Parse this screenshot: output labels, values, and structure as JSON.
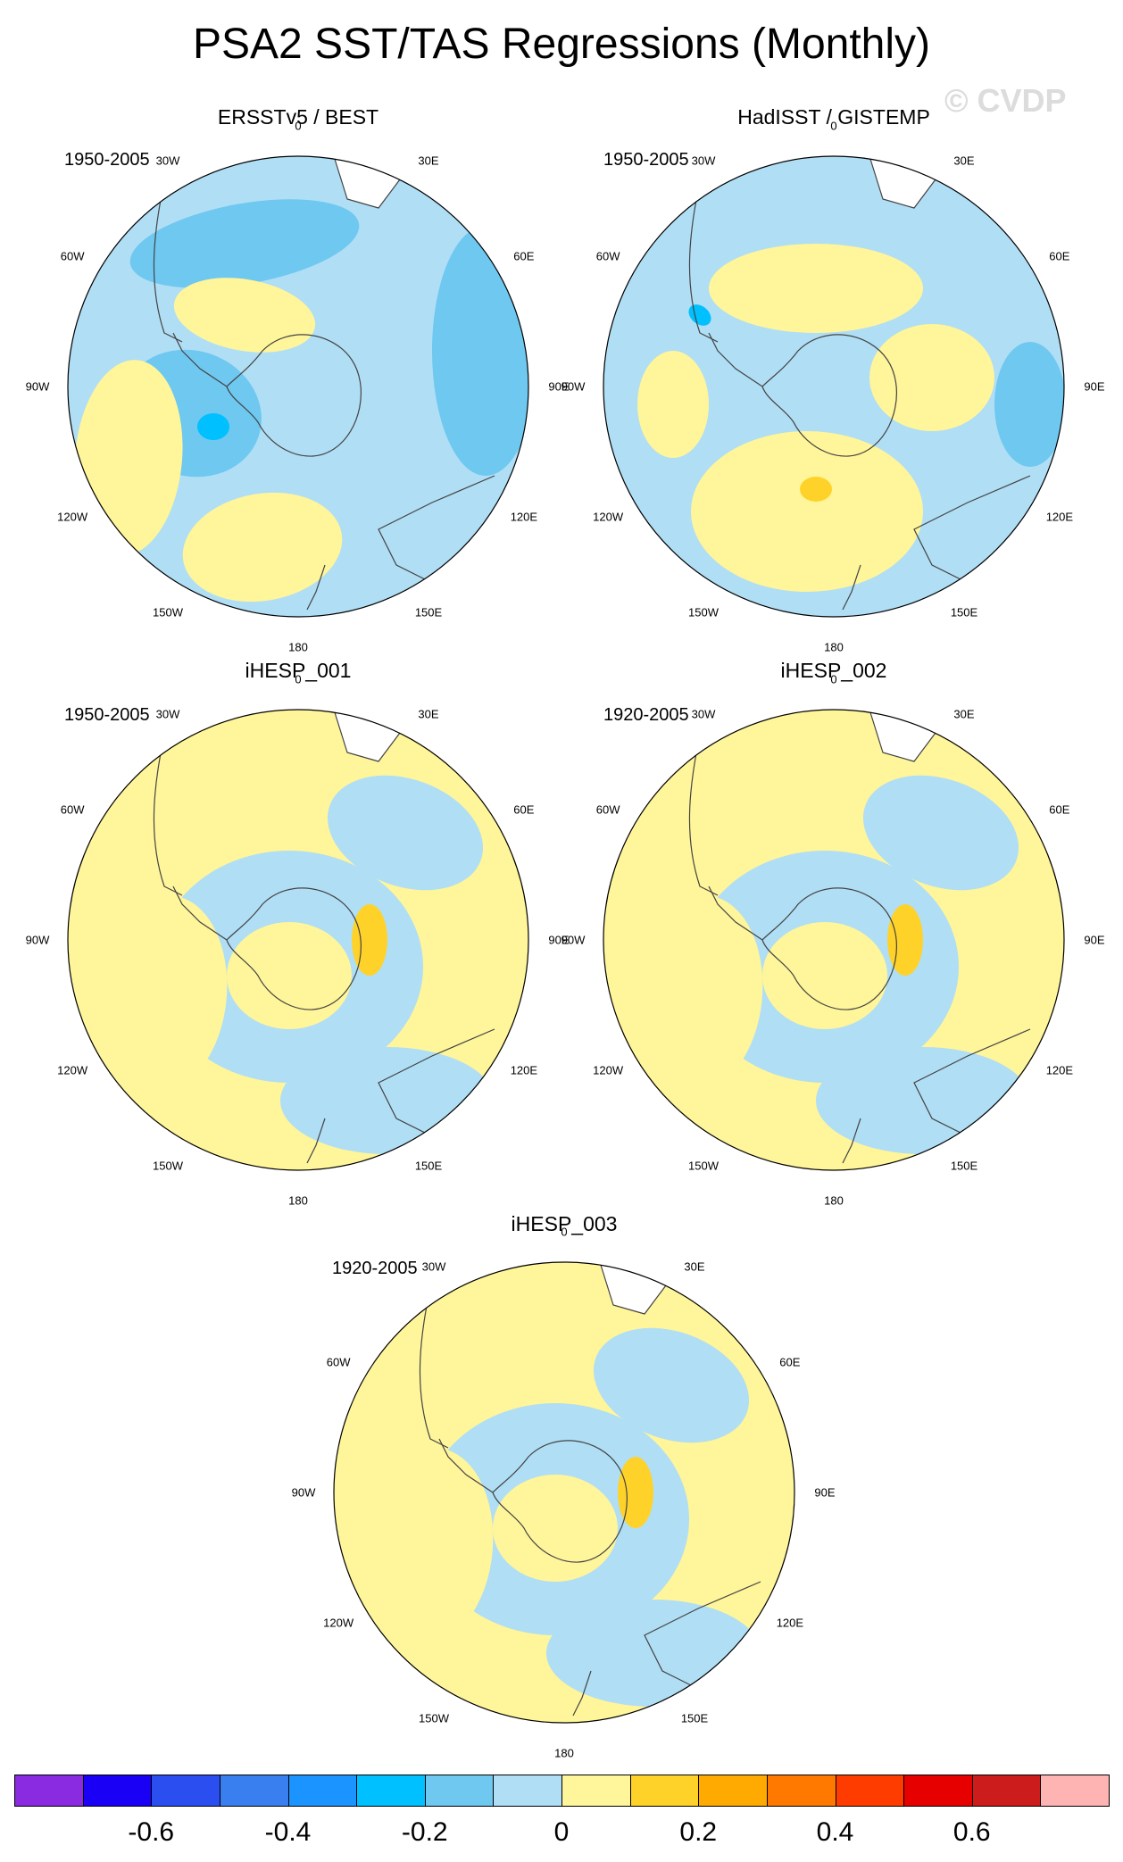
{
  "title": "PSA2 SST/TAS Regressions (Monthly)",
  "watermark": "© CVDP",
  "longitude_labels": [
    "0",
    "30E",
    "60E",
    "90E",
    "120E",
    "150E",
    "180",
    "150W",
    "120W",
    "90W",
    "60W",
    "30W"
  ],
  "panels": [
    {
      "title": "ERSSTv5 / BEST",
      "period": "1950-2005",
      "dominant_sign": "negative"
    },
    {
      "title": "HadISST / GISTEMP",
      "period": "1950-2005",
      "dominant_sign": "mixed"
    },
    {
      "title": "iHESP_001",
      "period": "1950-2005",
      "dominant_sign": "positive"
    },
    {
      "title": "iHESP_002",
      "period": "1920-2005",
      "dominant_sign": "positive"
    },
    {
      "title": "iHESP_003",
      "period": "1920-2005",
      "dominant_sign": "positive"
    }
  ],
  "colorbar": {
    "colors": [
      "#8a2be2",
      "#1a00f5",
      "#2a4ef0",
      "#3a7ff0",
      "#1c94ff",
      "#00c0ff",
      "#6ec8f0",
      "#b0def5",
      "#fff59a",
      "#ffd22a",
      "#ffaa00",
      "#ff7800",
      "#ff3c00",
      "#e60000",
      "#cc1c1c",
      "#ffb4b4"
    ],
    "labels": [
      "-0.6",
      "-0.4",
      "-0.2",
      "0",
      "0.2",
      "0.4",
      "0.6"
    ]
  },
  "map_colors": {
    "light_negative": "#b0def5",
    "medium_negative": "#6ec8f0",
    "strong_negative": "#00c0ff",
    "light_positive": "#fff59a",
    "medium_positive": "#ffd22a",
    "land": "#ffffff",
    "coast": "#444444"
  }
}
